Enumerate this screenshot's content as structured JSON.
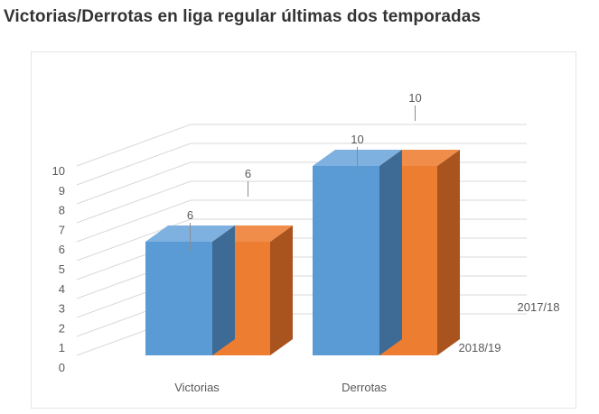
{
  "title": "Victorias/Derrotas en liga regular últimas dos temporadas",
  "colors": {
    "series_2018_19": {
      "front": "#5b9bd5",
      "side": "#3d6b95",
      "top": "#7fb1e0"
    },
    "series_2017_18": {
      "front": "#ed7d31",
      "side": "#a9531f",
      "top": "#f08d4a"
    },
    "grid": "#d9d9d9",
    "text": "#595959"
  },
  "chart_data": {
    "type": "bar",
    "style": "3d-clustered-columns",
    "categories": [
      "Victorias",
      "Derrotas"
    ],
    "series": [
      {
        "name": "2018/19",
        "values": [
          6,
          10
        ]
      },
      {
        "name": "2017/18",
        "values": [
          6,
          10
        ]
      }
    ],
    "y_ticks": [
      "0",
      "1",
      "2",
      "3",
      "4",
      "5",
      "6",
      "7",
      "8",
      "9",
      "10"
    ],
    "ylim": [
      0,
      10
    ],
    "data_labels": true,
    "grid": true,
    "legend": "depth-axis labels"
  }
}
